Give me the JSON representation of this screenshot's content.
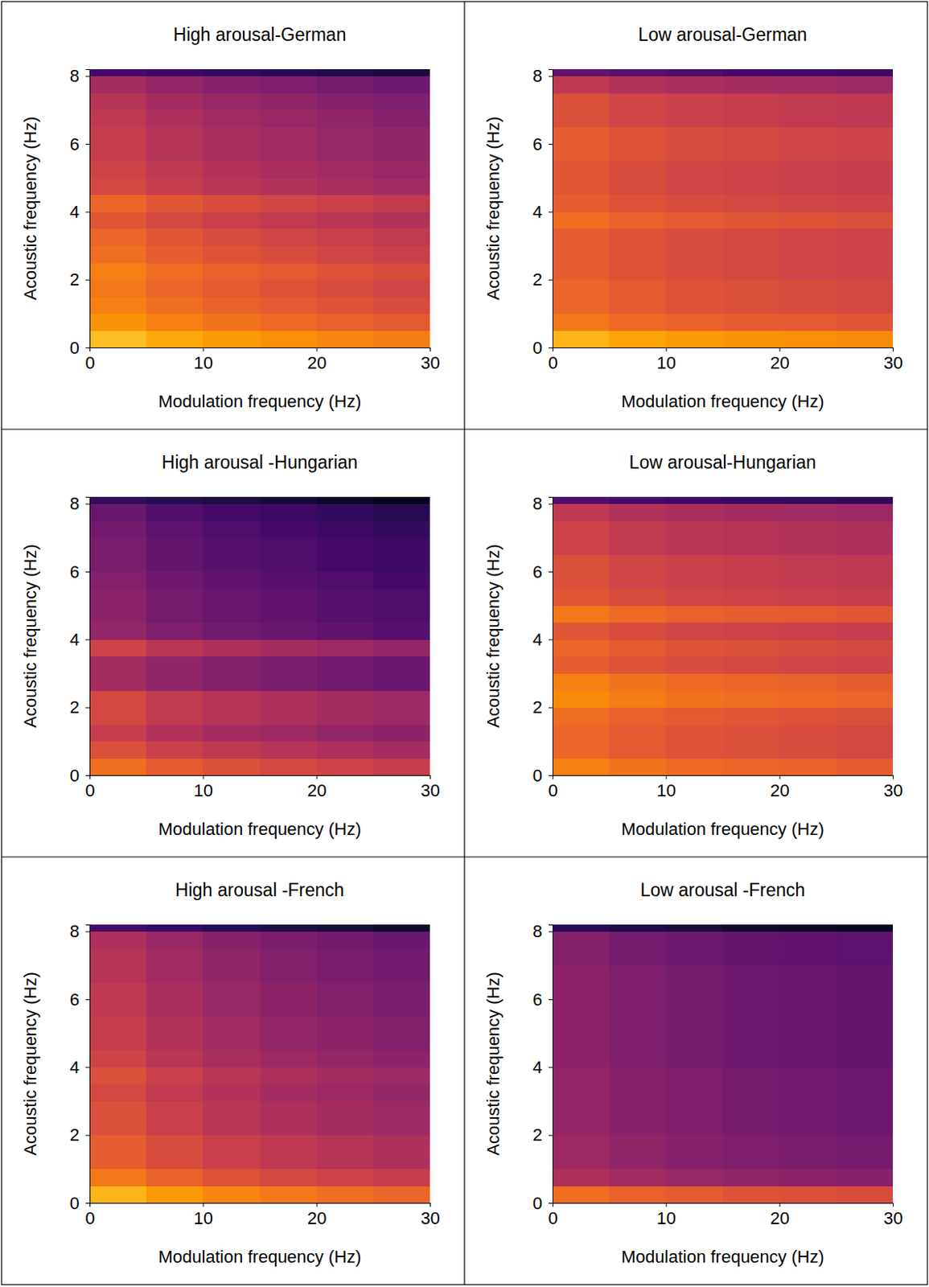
{
  "chart_data": [
    {
      "type": "heatmap",
      "title": "High arousal-German",
      "x_label": "Modulation frequency (Hz)",
      "y_label": "Acoustic frequency (Hz)",
      "xlim": [
        0,
        30
      ],
      "ylim": [
        0,
        8.2
      ],
      "xticks": [
        0,
        10,
        20,
        30
      ],
      "yticks": [
        0,
        2,
        4,
        6,
        8
      ],
      "x_edges": [
        0,
        5,
        10,
        15,
        20,
        25,
        30
      ],
      "y_edges": [
        0,
        0.5,
        1,
        1.5,
        2,
        2.5,
        3,
        3.5,
        4,
        4.5,
        5,
        5.5,
        6,
        6.5,
        7,
        7.5,
        8,
        8.2
      ],
      "z": [
        [
          82,
          78,
          75,
          73,
          71,
          69
        ],
        [
          74,
          70,
          67,
          65,
          63,
          61
        ],
        [
          70,
          66,
          63,
          61,
          59,
          57
        ],
        [
          68,
          64,
          61,
          59,
          57,
          55
        ],
        [
          70,
          66,
          63,
          61,
          59,
          57
        ],
        [
          66,
          62,
          59,
          57,
          55,
          53
        ],
        [
          64,
          60,
          57,
          55,
          53,
          51
        ],
        [
          60,
          56,
          53,
          51,
          49,
          47
        ],
        [
          64,
          60,
          57,
          55,
          53,
          51
        ],
        [
          56,
          52,
          49,
          47,
          45,
          43
        ],
        [
          54,
          50,
          47,
          45,
          43,
          41
        ],
        [
          52,
          48,
          45,
          43,
          41,
          39
        ],
        [
          52,
          48,
          45,
          43,
          41,
          39
        ],
        [
          50,
          46,
          43,
          41,
          39,
          37
        ],
        [
          48,
          44,
          41,
          39,
          37,
          35
        ],
        [
          44,
          40,
          37,
          35,
          33,
          31
        ],
        [
          22,
          20,
          18,
          16,
          14,
          12
        ]
      ]
    },
    {
      "type": "heatmap",
      "title": "Low arousal-German",
      "x_label": "Modulation frequency (Hz)",
      "y_label": "Acoustic frequency (Hz)",
      "xlim": [
        0,
        30
      ],
      "ylim": [
        0,
        8.2
      ],
      "xticks": [
        0,
        10,
        20,
        30
      ],
      "yticks": [
        0,
        2,
        4,
        6,
        8
      ],
      "x_edges": [
        0,
        5,
        10,
        15,
        20,
        25,
        30
      ],
      "y_edges": [
        0,
        0.5,
        1,
        1.5,
        2,
        2.5,
        3,
        3.5,
        4,
        4.5,
        5,
        5.5,
        6,
        6.5,
        7,
        7.5,
        8,
        8.2
      ],
      "z": [
        [
          80,
          77,
          75,
          74,
          73,
          72
        ],
        [
          68,
          65,
          63,
          62,
          61,
          60
        ],
        [
          64,
          61,
          59,
          58,
          57,
          56
        ],
        [
          64,
          61,
          59,
          58,
          57,
          56
        ],
        [
          62,
          59,
          57,
          56,
          55,
          54
        ],
        [
          62,
          59,
          57,
          56,
          55,
          54
        ],
        [
          62,
          59,
          57,
          56,
          55,
          54
        ],
        [
          66,
          63,
          61,
          60,
          59,
          58
        ],
        [
          62,
          59,
          57,
          56,
          55,
          54
        ],
        [
          60,
          57,
          55,
          54,
          53,
          52
        ],
        [
          60,
          57,
          55,
          54,
          53,
          52
        ],
        [
          62,
          59,
          57,
          56,
          55,
          54
        ],
        [
          62,
          59,
          57,
          56,
          55,
          54
        ],
        [
          58,
          55,
          53,
          52,
          51,
          50
        ],
        [
          58,
          55,
          53,
          52,
          51,
          50
        ],
        [
          50,
          47,
          45,
          44,
          43,
          42
        ],
        [
          28,
          26,
          24,
          22,
          21,
          20
        ]
      ]
    },
    {
      "type": "heatmap",
      "title": "High arousal -Hungarian",
      "x_label": "Modulation frequency (Hz)",
      "y_label": "Acoustic frequency (Hz)",
      "xlim": [
        0,
        30
      ],
      "ylim": [
        0,
        8.2
      ],
      "xticks": [
        0,
        10,
        20,
        30
      ],
      "yticks": [
        0,
        2,
        4,
        6,
        8
      ],
      "x_edges": [
        0,
        5,
        10,
        15,
        20,
        25,
        30
      ],
      "y_edges": [
        0,
        0.5,
        1,
        1.5,
        2,
        2.5,
        3,
        3.5,
        4,
        4.5,
        5,
        5.5,
        6,
        6.5,
        7,
        7.5,
        8,
        8.2
      ],
      "z": [
        [
          66,
          61,
          58,
          56,
          54,
          52
        ],
        [
          58,
          53,
          50,
          48,
          46,
          44
        ],
        [
          52,
          47,
          44,
          42,
          40,
          38
        ],
        [
          56,
          51,
          48,
          46,
          44,
          42
        ],
        [
          56,
          51,
          48,
          46,
          44,
          42
        ],
        [
          44,
          39,
          36,
          34,
          32,
          30
        ],
        [
          44,
          39,
          36,
          34,
          32,
          30
        ],
        [
          54,
          49,
          46,
          44,
          42,
          40
        ],
        [
          40,
          35,
          32,
          30,
          28,
          26
        ],
        [
          38,
          33,
          30,
          28,
          26,
          24
        ],
        [
          38,
          33,
          30,
          28,
          26,
          24
        ],
        [
          36,
          31,
          28,
          26,
          24,
          22
        ],
        [
          34,
          29,
          26,
          24,
          22,
          20
        ],
        [
          34,
          29,
          26,
          24,
          22,
          20
        ],
        [
          32,
          27,
          24,
          22,
          20,
          18
        ],
        [
          30,
          25,
          22,
          20,
          18,
          16
        ],
        [
          18,
          15,
          13,
          11,
          9,
          7
        ]
      ]
    },
    {
      "type": "heatmap",
      "title": "Low arousal-Hungarian",
      "x_label": "Modulation frequency (Hz)",
      "y_label": "Acoustic frequency (Hz)",
      "xlim": [
        0,
        30
      ],
      "ylim": [
        0,
        8.2
      ],
      "xticks": [
        0,
        10,
        20,
        30
      ],
      "yticks": [
        0,
        2,
        4,
        6,
        8
      ],
      "x_edges": [
        0,
        5,
        10,
        15,
        20,
        25,
        30
      ],
      "y_edges": [
        0,
        0.5,
        1,
        1.5,
        2,
        2.5,
        3,
        3.5,
        4,
        4.5,
        5,
        5.5,
        6,
        6.5,
        7,
        7.5,
        8,
        8.2
      ],
      "z": [
        [
          70,
          67,
          65,
          64,
          63,
          62
        ],
        [
          64,
          61,
          59,
          58,
          57,
          56
        ],
        [
          64,
          61,
          59,
          58,
          57,
          56
        ],
        [
          66,
          63,
          61,
          60,
          59,
          58
        ],
        [
          72,
          69,
          67,
          66,
          65,
          64
        ],
        [
          70,
          67,
          65,
          64,
          63,
          62
        ],
        [
          62,
          59,
          57,
          56,
          55,
          54
        ],
        [
          64,
          61,
          59,
          58,
          57,
          56
        ],
        [
          60,
          57,
          55,
          54,
          53,
          52
        ],
        [
          68,
          65,
          63,
          62,
          61,
          60
        ],
        [
          60,
          57,
          55,
          54,
          53,
          52
        ],
        [
          58,
          55,
          53,
          52,
          51,
          50
        ],
        [
          58,
          55,
          53,
          52,
          51,
          50
        ],
        [
          54,
          51,
          49,
          48,
          47,
          46
        ],
        [
          54,
          51,
          49,
          48,
          47,
          46
        ],
        [
          50,
          47,
          45,
          44,
          43,
          42
        ],
        [
          24,
          22,
          20,
          19,
          18,
          17
        ]
      ]
    },
    {
      "type": "heatmap",
      "title": "High arousal -French",
      "x_label": "Modulation frequency (Hz)",
      "y_label": "Acoustic frequency (Hz)",
      "xlim": [
        0,
        30
      ],
      "ylim": [
        0,
        8.2
      ],
      "xticks": [
        0,
        10,
        20,
        30
      ],
      "yticks": [
        0,
        2,
        4,
        6,
        8
      ],
      "x_edges": [
        0,
        5,
        10,
        15,
        20,
        25,
        30
      ],
      "y_edges": [
        0,
        0.5,
        1,
        1.5,
        2,
        2.5,
        3,
        3.5,
        4,
        4.5,
        5,
        5.5,
        6,
        6.5,
        7,
        7.5,
        8,
        8.2
      ],
      "z": [
        [
          80,
          75,
          71,
          68,
          66,
          64
        ],
        [
          68,
          63,
          59,
          56,
          54,
          52
        ],
        [
          62,
          57,
          53,
          50,
          48,
          46
        ],
        [
          62,
          57,
          53,
          50,
          48,
          46
        ],
        [
          58,
          53,
          49,
          46,
          44,
          42
        ],
        [
          58,
          53,
          49,
          46,
          44,
          42
        ],
        [
          56,
          51,
          47,
          44,
          42,
          40
        ],
        [
          58,
          53,
          49,
          46,
          44,
          42
        ],
        [
          54,
          49,
          45,
          42,
          40,
          38
        ],
        [
          52,
          47,
          43,
          40,
          38,
          36
        ],
        [
          52,
          47,
          43,
          40,
          38,
          36
        ],
        [
          50,
          45,
          41,
          38,
          36,
          34
        ],
        [
          50,
          45,
          41,
          38,
          36,
          34
        ],
        [
          48,
          43,
          39,
          36,
          34,
          32
        ],
        [
          48,
          43,
          39,
          36,
          34,
          32
        ],
        [
          46,
          41,
          37,
          34,
          32,
          30
        ],
        [
          22,
          19,
          16,
          14,
          12,
          10
        ]
      ]
    },
    {
      "type": "heatmap",
      "title": "Low arousal -French",
      "x_label": "Modulation frequency (Hz)",
      "y_label": "Acoustic frequency (Hz)",
      "xlim": [
        0,
        30
      ],
      "ylim": [
        0,
        8.2
      ],
      "xticks": [
        0,
        10,
        20,
        30
      ],
      "yticks": [
        0,
        2,
        4,
        6,
        8
      ],
      "x_edges": [
        0,
        5,
        10,
        15,
        20,
        25,
        30
      ],
      "y_edges": [
        0,
        0.5,
        1,
        1.5,
        2,
        2.5,
        3,
        3.5,
        4,
        4.5,
        5,
        5.5,
        6,
        6.5,
        7,
        7.5,
        8,
        8.2
      ],
      "z": [
        [
          66,
          63,
          61,
          59,
          58,
          57
        ],
        [
          46,
          43,
          41,
          39,
          38,
          37
        ],
        [
          42,
          39,
          37,
          35,
          34,
          33
        ],
        [
          42,
          39,
          37,
          35,
          34,
          33
        ],
        [
          40,
          37,
          35,
          33,
          32,
          31
        ],
        [
          40,
          37,
          35,
          33,
          32,
          31
        ],
        [
          40,
          37,
          35,
          33,
          32,
          31
        ],
        [
          40,
          37,
          35,
          33,
          32,
          31
        ],
        [
          38,
          35,
          33,
          31,
          30,
          29
        ],
        [
          38,
          35,
          33,
          31,
          30,
          29
        ],
        [
          38,
          35,
          33,
          31,
          30,
          29
        ],
        [
          38,
          35,
          33,
          31,
          30,
          29
        ],
        [
          38,
          35,
          33,
          31,
          30,
          29
        ],
        [
          38,
          35,
          33,
          31,
          30,
          29
        ],
        [
          36,
          33,
          31,
          29,
          28,
          27
        ],
        [
          36,
          33,
          31,
          29,
          28,
          27
        ],
        [
          16,
          14,
          12,
          10,
          9,
          8
        ]
      ]
    }
  ]
}
